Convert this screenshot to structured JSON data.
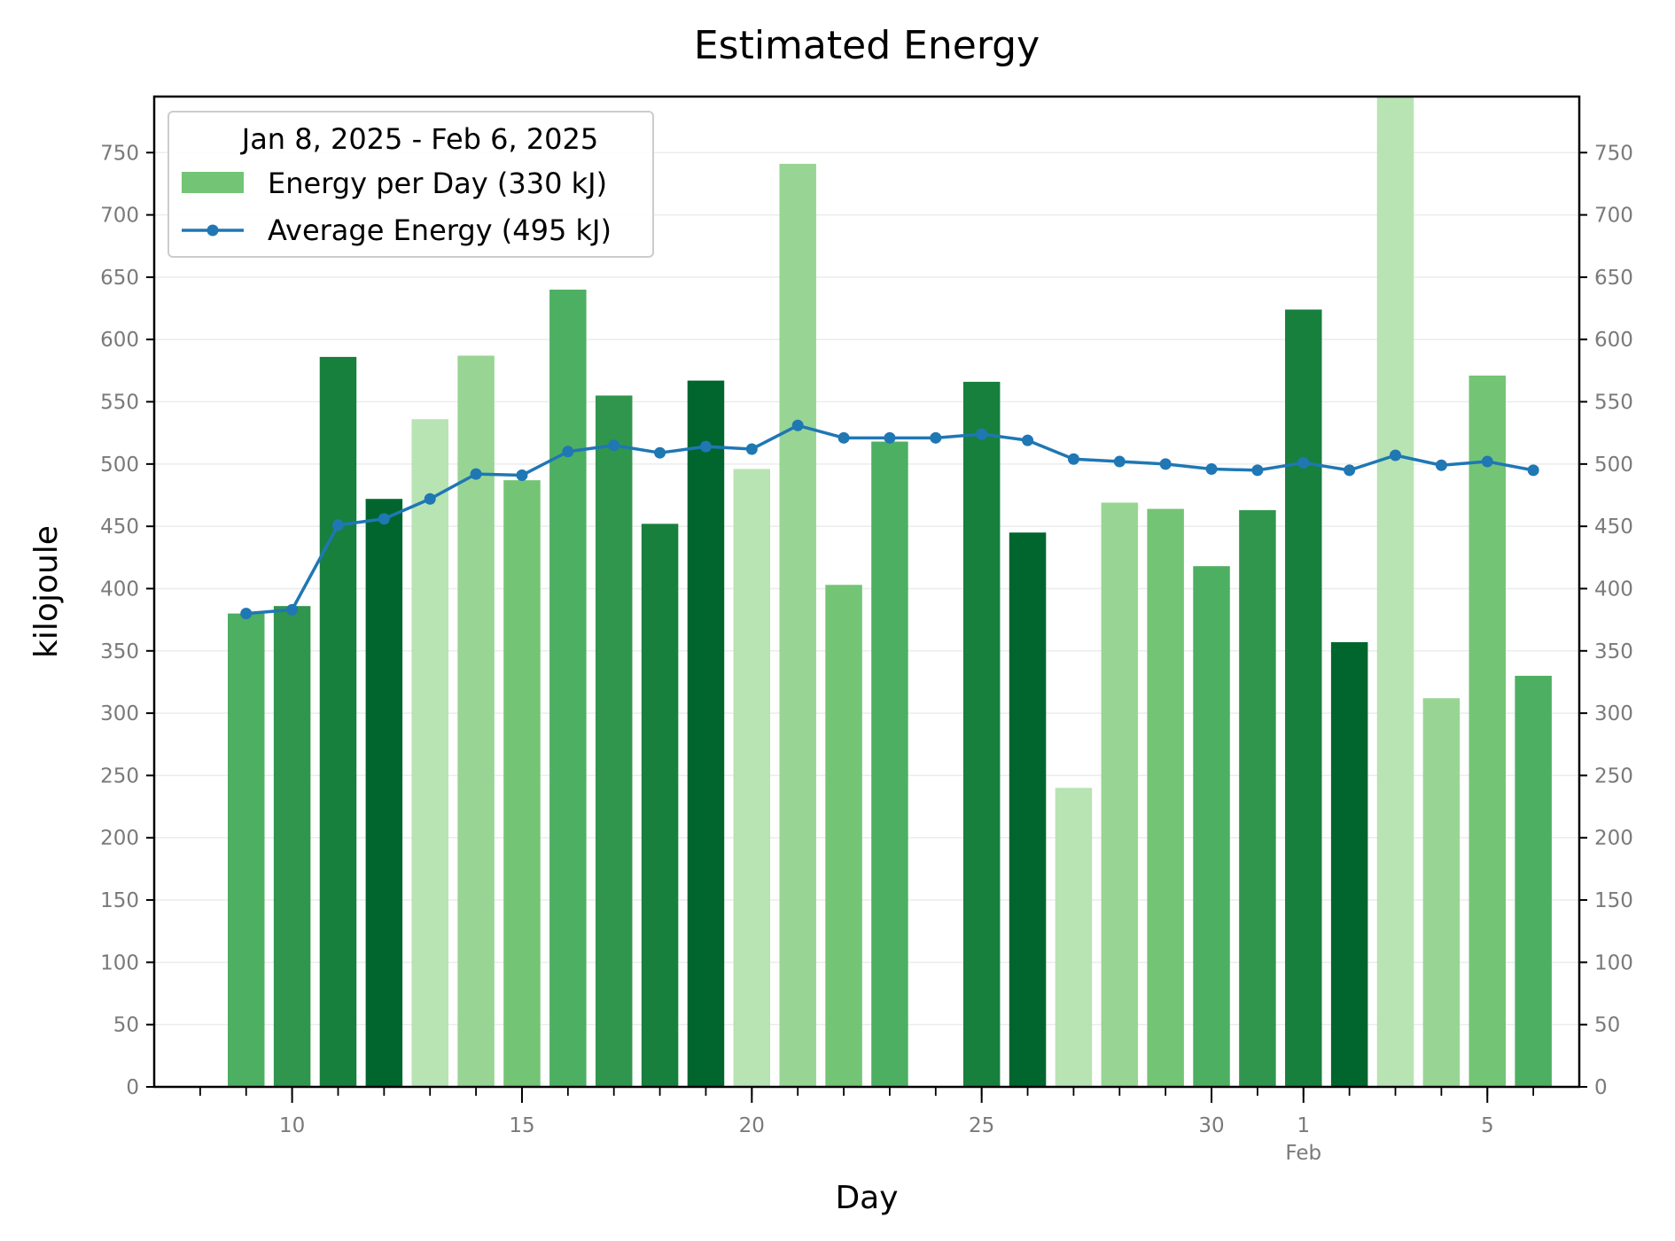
{
  "chart_data": {
    "type": "bar",
    "title": "Estimated Energy",
    "xlabel": "Day",
    "ylabel": "kilojoule",
    "ylim": [
      0,
      795
    ],
    "yticks": [
      0,
      50,
      100,
      150,
      200,
      250,
      300,
      350,
      400,
      450,
      500,
      550,
      600,
      650,
      700,
      750
    ],
    "grid": "horizontal",
    "mirror_y_axis": "right",
    "x_range": [
      "2025-01-07",
      "2025-02-07"
    ],
    "x_tick_labels": [
      {
        "date": "2025-01-10",
        "label": "10"
      },
      {
        "date": "2025-01-15",
        "label": "15"
      },
      {
        "date": "2025-01-20",
        "label": "20"
      },
      {
        "date": "2025-01-25",
        "label": "25"
      },
      {
        "date": "2025-01-30",
        "label": "30"
      },
      {
        "date": "2025-02-01",
        "label": "1",
        "sublabel": "Feb"
      },
      {
        "date": "2025-02-05",
        "label": "5"
      }
    ],
    "legend": {
      "position": "top-left",
      "title": "Jan  8, 2025 - Feb  6, 2025",
      "entries": [
        {
          "label": "Energy per Day (330 kJ)",
          "kind": "bar",
          "color": "#74c476"
        },
        {
          "label": "Average Energy (495 kJ)",
          "kind": "line",
          "color": "#1f77b4"
        }
      ]
    },
    "series": [
      {
        "kind": "bar",
        "values": [
          {
            "date": "2025-01-09",
            "value": 380,
            "color": "#4daf62"
          },
          {
            "date": "2025-01-10",
            "value": 386,
            "color": "#31964d"
          },
          {
            "date": "2025-01-11",
            "value": 586,
            "color": "#17803d"
          },
          {
            "date": "2025-01-12",
            "value": 472,
            "color": "#00662e"
          },
          {
            "date": "2025-01-13",
            "value": 536,
            "color": "#b8e3b3"
          },
          {
            "date": "2025-01-14",
            "value": 587,
            "color": "#98d594"
          },
          {
            "date": "2025-01-15",
            "value": 487,
            "color": "#74c476"
          },
          {
            "date": "2025-01-16",
            "value": 640,
            "color": "#4daf62"
          },
          {
            "date": "2025-01-17",
            "value": 555,
            "color": "#31964d"
          },
          {
            "date": "2025-01-18",
            "value": 452,
            "color": "#17803d"
          },
          {
            "date": "2025-01-19",
            "value": 567,
            "color": "#00662e"
          },
          {
            "date": "2025-01-20",
            "value": 496,
            "color": "#b8e3b3"
          },
          {
            "date": "2025-01-21",
            "value": 741,
            "color": "#98d594"
          },
          {
            "date": "2025-01-22",
            "value": 403,
            "color": "#74c476"
          },
          {
            "date": "2025-01-23",
            "value": 518,
            "color": "#4daf62"
          },
          {
            "date": "2025-01-25",
            "value": 566,
            "color": "#17803d"
          },
          {
            "date": "2025-01-26",
            "value": 445,
            "color": "#00662e"
          },
          {
            "date": "2025-01-27",
            "value": 240,
            "color": "#b8e3b3"
          },
          {
            "date": "2025-01-28",
            "value": 469,
            "color": "#98d594"
          },
          {
            "date": "2025-01-29",
            "value": 464,
            "color": "#74c476"
          },
          {
            "date": "2025-01-30",
            "value": 418,
            "color": "#4daf62"
          },
          {
            "date": "2025-01-31",
            "value": 463,
            "color": "#31964d"
          },
          {
            "date": "2025-02-01",
            "value": 624,
            "color": "#17803d"
          },
          {
            "date": "2025-02-02",
            "value": 357,
            "color": "#00662e"
          },
          {
            "date": "2025-02-03",
            "value": 800,
            "color": "#b8e3b3"
          },
          {
            "date": "2025-02-04",
            "value": 312,
            "color": "#98d594"
          },
          {
            "date": "2025-02-05",
            "value": 571,
            "color": "#74c476"
          },
          {
            "date": "2025-02-06",
            "value": 330,
            "color": "#4daf62"
          }
        ]
      },
      {
        "kind": "line",
        "color": "#1f77b4",
        "values": [
          {
            "date": "2025-01-09",
            "value": 380
          },
          {
            "date": "2025-01-10",
            "value": 383
          },
          {
            "date": "2025-01-11",
            "value": 451
          },
          {
            "date": "2025-01-12",
            "value": 456
          },
          {
            "date": "2025-01-13",
            "value": 472
          },
          {
            "date": "2025-01-14",
            "value": 492
          },
          {
            "date": "2025-01-15",
            "value": 491
          },
          {
            "date": "2025-01-16",
            "value": 510
          },
          {
            "date": "2025-01-17",
            "value": 515
          },
          {
            "date": "2025-01-18",
            "value": 509
          },
          {
            "date": "2025-01-19",
            "value": 514
          },
          {
            "date": "2025-01-20",
            "value": 512
          },
          {
            "date": "2025-01-21",
            "value": 531
          },
          {
            "date": "2025-01-22",
            "value": 521
          },
          {
            "date": "2025-01-23",
            "value": 521
          },
          {
            "date": "2025-01-24",
            "value": 521
          },
          {
            "date": "2025-01-25",
            "value": 524
          },
          {
            "date": "2025-01-26",
            "value": 519
          },
          {
            "date": "2025-01-27",
            "value": 504
          },
          {
            "date": "2025-01-28",
            "value": 502
          },
          {
            "date": "2025-01-29",
            "value": 500
          },
          {
            "date": "2025-01-30",
            "value": 496
          },
          {
            "date": "2025-01-31",
            "value": 495
          },
          {
            "date": "2025-02-01",
            "value": 501
          },
          {
            "date": "2025-02-02",
            "value": 495
          },
          {
            "date": "2025-02-03",
            "value": 507
          },
          {
            "date": "2025-02-04",
            "value": 499
          },
          {
            "date": "2025-02-05",
            "value": 502
          },
          {
            "date": "2025-02-06",
            "value": 495
          }
        ]
      }
    ]
  }
}
